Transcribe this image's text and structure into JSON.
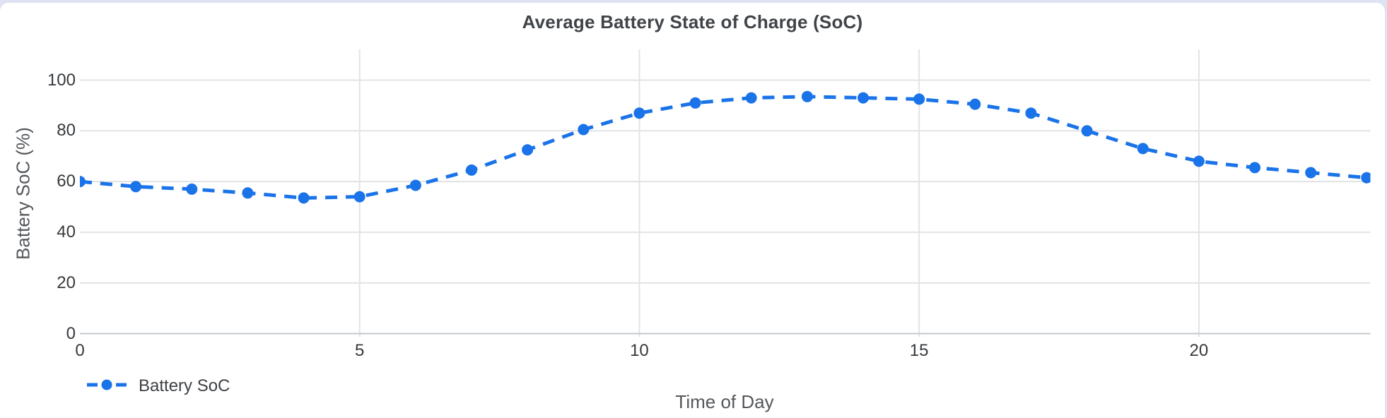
{
  "chart_data": {
    "type": "line",
    "title": "Average Battery State of Charge (SoC)",
    "xlabel": "Time of Day",
    "ylabel": "Battery SoC (%)",
    "x": [
      0,
      1,
      2,
      3,
      4,
      5,
      6,
      7,
      8,
      9,
      10,
      11,
      12,
      13,
      14,
      15,
      16,
      17,
      18,
      19,
      20,
      21,
      22,
      23
    ],
    "series": [
      {
        "name": "Battery SoC",
        "color": "#1a73e8",
        "line_style": "dashed",
        "marker": "circle",
        "values": [
          60,
          58,
          57,
          55.5,
          53.5,
          54,
          58.5,
          64.5,
          72.5,
          80.5,
          87,
          91,
          93,
          93.5,
          93,
          92.5,
          90.5,
          87,
          80,
          73,
          68,
          65.5,
          63.5,
          61.5
        ]
      }
    ],
    "xlim": [
      0,
      23
    ],
    "ylim": [
      0,
      100
    ],
    "x_ticks": [
      0,
      5,
      10,
      15,
      20
    ],
    "y_ticks": [
      0,
      20,
      40,
      60,
      80,
      100
    ],
    "grid": true,
    "legend_position": "bottom-left"
  },
  "colors": {
    "series_blue": "#1a73e8",
    "gridline": "#e1e3e5",
    "axis_line": "#c6c9cd",
    "tick_label": "#36393d",
    "axis_title": "#54575b",
    "chart_title": "#404448",
    "page_background": "#dee2f2",
    "card_background": "#ffffff"
  }
}
